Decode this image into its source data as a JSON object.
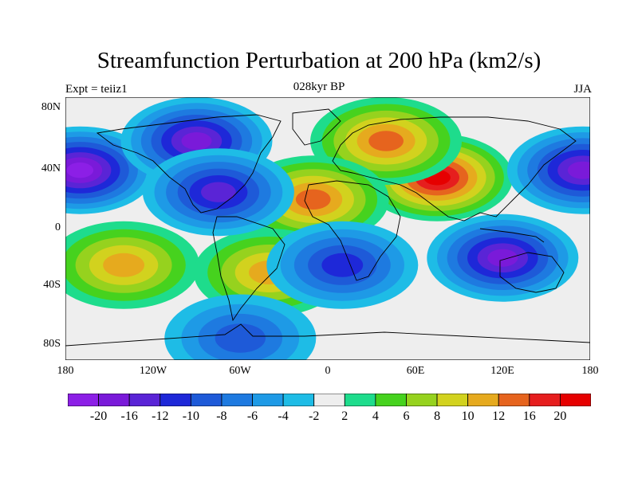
{
  "title": "Streamfunction Perturbation at 200 hPa (km2/s)",
  "left_label": "Expt = teiiz1",
  "center_label": "028kyr BP",
  "right_label": "JJA",
  "lat_ticks": [
    "80N",
    "40N",
    "0",
    "40S",
    "80S"
  ],
  "lon_ticks": [
    "180",
    "120W",
    "60W",
    "0",
    "60E",
    "120E",
    "180"
  ],
  "colorbar": {
    "labels": [
      "-20",
      "-16",
      "-12",
      "-10",
      "-8",
      "-6",
      "-4",
      "-2",
      "2",
      "4",
      "6",
      "8",
      "10",
      "12",
      "16",
      "20"
    ],
    "colors": [
      "#8c1fe6",
      "#7a1ad9",
      "#5a24d6",
      "#1e28d8",
      "#1e5ad8",
      "#1e7ae0",
      "#1e9ae6",
      "#1ebce6",
      "#eeeeee",
      "#1edc8c",
      "#46d21e",
      "#96d21e",
      "#d2d21e",
      "#e6aa1e",
      "#e6641e",
      "#e61e1e",
      "#e60000"
    ]
  },
  "chart_data": {
    "type": "heatmap",
    "title": "Streamfunction Perturbation at 200 hPa (km2/s)",
    "subtitle": "028kyr BP",
    "x_range": [
      -180,
      180
    ],
    "y_range": [
      -90,
      90
    ],
    "levels": [
      -20,
      -16,
      -12,
      -10,
      -8,
      -6,
      -4,
      -2,
      2,
      4,
      6,
      8,
      10,
      12,
      16,
      20
    ],
    "features": [
      {
        "lon": 75,
        "lat": 35,
        "value": 20
      },
      {
        "lon": 40,
        "lat": 60,
        "value": 12
      },
      {
        "lon": -10,
        "lat": 20,
        "value": 12
      },
      {
        "lon": -140,
        "lat": -25,
        "value": 10
      },
      {
        "lon": -40,
        "lat": -30,
        "value": 10
      },
      {
        "lon": -170,
        "lat": 40,
        "value": -20
      },
      {
        "lon": -90,
        "lat": 60,
        "value": -16
      },
      {
        "lon": -75,
        "lat": 25,
        "value": -14
      },
      {
        "lon": 120,
        "lat": -20,
        "value": -16
      },
      {
        "lon": 175,
        "lat": 40,
        "value": -16
      },
      {
        "lon": 10,
        "lat": -25,
        "value": -10
      },
      {
        "lon": -60,
        "lat": -75,
        "value": -8
      }
    ]
  }
}
